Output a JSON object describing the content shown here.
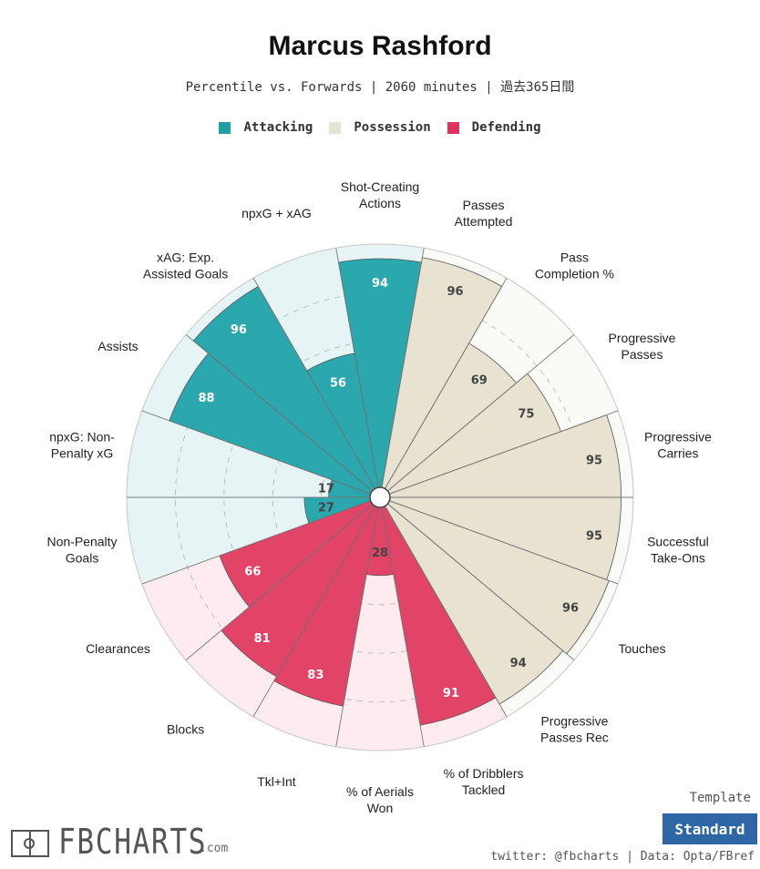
{
  "header": {
    "title": "Marcus Rashford",
    "subtitle": "Percentile vs. Forwards | 2060 minutes | 過去365日間"
  },
  "legend": [
    {
      "label": "Attacking",
      "color": "#1f9ea6"
    },
    {
      "label": "Possession",
      "color": "#e8e2d0"
    },
    {
      "label": "Defending",
      "color": "#dc3560"
    }
  ],
  "chart_data": {
    "type": "polar-bar",
    "title": "Marcus Rashford",
    "subtitle": "Percentile vs. Forwards | 2060 minutes | 過去365日間",
    "range": [
      0,
      100
    ],
    "categories": [
      {
        "label": "Shot-Creating\nActions",
        "value": 94,
        "group": "Attacking"
      },
      {
        "label": "Passes\nAttempted",
        "value": 96,
        "group": "Possession"
      },
      {
        "label": "Pass\nCompletion %",
        "value": 69,
        "group": "Possession"
      },
      {
        "label": "Progressive\nPasses",
        "value": 75,
        "group": "Possession"
      },
      {
        "label": "Progressive\nCarries",
        "value": 95,
        "group": "Possession"
      },
      {
        "label": "Successful\nTake-Ons",
        "value": 95,
        "group": "Possession"
      },
      {
        "label": "Touches",
        "value": 96,
        "group": "Possession"
      },
      {
        "label": "Progressive\nPasses Rec",
        "value": 94,
        "group": "Possession"
      },
      {
        "label": "% of Dribblers\nTackled",
        "value": 91,
        "group": "Defending"
      },
      {
        "label": "% of Aerials\nWon",
        "value": 28,
        "group": "Defending"
      },
      {
        "label": "Tkl+Int",
        "value": 83,
        "group": "Defending"
      },
      {
        "label": "Blocks",
        "value": 81,
        "group": "Defending"
      },
      {
        "label": "Clearances",
        "value": 66,
        "group": "Defending"
      },
      {
        "label": "Non-Penalty\nGoals",
        "value": 27,
        "group": "Attacking"
      },
      {
        "label": "npxG: Non-\nPenalty xG",
        "value": 17,
        "group": "Attacking"
      },
      {
        "label": "Assists",
        "value": 88,
        "group": "Attacking"
      },
      {
        "label": "xAG: Exp.\nAssisted Goals",
        "value": 96,
        "group": "Attacking"
      },
      {
        "label": "npxG + xAG",
        "value": 56,
        "group": "Attacking"
      }
    ],
    "group_colors": {
      "Attacking": {
        "bar": "#2ba7ae",
        "bg": "#e6f4f5",
        "text": "#ffffff"
      },
      "Possession": {
        "bar": "#e8e2d0",
        "bg": "#fafaf7",
        "text": "#444444"
      },
      "Defending": {
        "bar": "#e24468",
        "bg": "#fdebef",
        "text": "#ffffff"
      }
    }
  },
  "footer": {
    "logo_text": "FBCHARTS",
    "logo_suffix": ".com",
    "template_label": "Template",
    "template_value": "Standard",
    "credit": "twitter: @fbcharts | Data: Opta/FBref"
  }
}
